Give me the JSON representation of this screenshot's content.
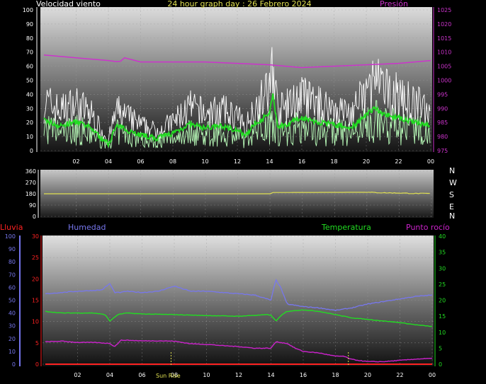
{
  "header": {
    "wind_label": "Velocidad viento",
    "title": "24 hour graph day : 26 Febrero 2024",
    "pressure_label": "Presión"
  },
  "compass": [
    "N",
    "W",
    "S",
    "E",
    "N"
  ],
  "bottom_header": {
    "rain_label": "Lluvia",
    "humidity_label": "Humedad",
    "temperature_label": "Temperatura",
    "dewpoint_label": "Punto rocío"
  },
  "annotations": {
    "sunrise": "Sun Rise"
  },
  "colors": {
    "wind": "#ffffff",
    "wind_avg": "#22dd22",
    "wind_gust_low": "#bbffbb",
    "pressure": "#cc33cc",
    "direction": "#e0e050",
    "humidity": "#7777ee",
    "temperature": "#22dd22",
    "dewpoint": "#cc22cc",
    "rain": "#ff2222"
  },
  "chart_data": [
    {
      "type": "line",
      "x_ticks": [
        "02",
        "04",
        "06",
        "08",
        "10",
        "12",
        "14",
        "16",
        "18",
        "20",
        "22",
        "00"
      ],
      "y_left": {
        "label": "Velocidad viento",
        "ylim": [
          0,
          100
        ],
        "ticks": [
          0,
          10,
          20,
          30,
          40,
          50,
          60,
          70,
          80,
          90,
          100
        ]
      },
      "y_right": {
        "label": "Presión",
        "ylim": [
          975,
          1025
        ],
        "ticks": [
          975,
          980,
          985,
          990,
          995,
          1000,
          1005,
          1010,
          1015,
          1020,
          1025
        ]
      },
      "series": [
        {
          "name": "Velocidad viento",
          "axis": "left",
          "x": [
            0,
            1,
            2,
            3,
            3.5,
            4,
            4.5,
            5,
            6,
            7,
            8,
            9,
            10,
            11,
            12,
            12.5,
            13,
            14,
            14.2,
            14.5,
            15,
            16,
            17,
            18,
            19,
            20,
            20.5,
            21,
            22,
            23,
            24
          ],
          "values": [
            35,
            28,
            33,
            25,
            15,
            8,
            28,
            25,
            18,
            14,
            20,
            30,
            26,
            28,
            24,
            16,
            30,
            42,
            65,
            28,
            30,
            38,
            32,
            30,
            26,
            40,
            50,
            42,
            38,
            32,
            30
          ]
        },
        {
          "name": "Presión",
          "axis": "right",
          "x": [
            0,
            2,
            4,
            4.7,
            5,
            6,
            8,
            10,
            12,
            14,
            16,
            18,
            20,
            22,
            24
          ],
          "values": [
            1009,
            1008,
            1007,
            1006.5,
            1008,
            1006.5,
            1006.5,
            1006.5,
            1006,
            1005.5,
            1004.5,
            1005,
            1005.5,
            1006,
            1007
          ]
        }
      ]
    },
    {
      "type": "line",
      "x_ticks": [
        "02",
        "04",
        "06",
        "08",
        "10",
        "12",
        "14",
        "16",
        "18",
        "20",
        "22",
        "00"
      ],
      "y": {
        "ylim": [
          0,
          360
        ],
        "ticks": [
          0,
          90,
          180,
          270,
          360
        ]
      },
      "series": [
        {
          "name": "Dirección",
          "x": [
            0,
            14,
            14.2,
            20,
            21,
            22,
            23,
            24
          ],
          "values": [
            180,
            180,
            190,
            192,
            188,
            186,
            182,
            182
          ]
        }
      ]
    },
    {
      "type": "line",
      "x_ticks": [
        "02",
        "04",
        "06",
        "08",
        "10",
        "12",
        "14",
        "16",
        "18",
        "20",
        "22",
        "00"
      ],
      "y_rain": {
        "label": "Lluvia",
        "ylim": [
          0,
          30
        ],
        "ticks": [
          0,
          5,
          10,
          15,
          20,
          25,
          30
        ]
      },
      "y_humidity": {
        "label": "Humedad",
        "ylim": [
          0,
          100
        ],
        "ticks": [
          0,
          10,
          20,
          30,
          40,
          50,
          60,
          70,
          80,
          90,
          100
        ]
      },
      "y_temp": {
        "label": "Temperatura / Punto rocío",
        "ylim": [
          0,
          40
        ],
        "ticks": [
          0,
          5,
          10,
          15,
          20,
          25,
          30,
          35,
          40
        ]
      },
      "series": [
        {
          "name": "Humedad",
          "axis": "humidity",
          "x": [
            0,
            2,
            3.5,
            4,
            4.3,
            4.7,
            5,
            6,
            7,
            8,
            8.5,
            9,
            10,
            11,
            12,
            13,
            14,
            14.3,
            14.6,
            15,
            15.5,
            16,
            17,
            18,
            19,
            20,
            21,
            22,
            23,
            24
          ],
          "values": [
            55,
            57,
            58,
            63,
            56,
            56,
            57,
            56,
            57,
            61,
            59,
            57,
            57,
            56,
            55,
            54,
            50,
            66,
            60,
            47,
            46,
            45,
            44,
            42,
            44,
            47,
            49,
            51,
            53,
            54
          ]
        },
        {
          "name": "Temperatura",
          "axis": "temp",
          "x": [
            0,
            1,
            2,
            3,
            3.7,
            4,
            4.5,
            5,
            6,
            8,
            10,
            12,
            13.8,
            14,
            14.3,
            14.7,
            15,
            16,
            17,
            18,
            19,
            20,
            21,
            22,
            23,
            24
          ],
          "values": [
            16.5,
            16,
            16,
            16,
            15.5,
            13.5,
            15.5,
            16,
            15.7,
            15.5,
            15.2,
            15,
            15.5,
            15.3,
            13.5,
            15.5,
            16.5,
            17,
            16.5,
            15.5,
            14.5,
            14,
            13.5,
            13,
            12.3,
            11.8
          ]
        },
        {
          "name": "Punto rocío",
          "axis": "temp",
          "x": [
            0,
            1,
            2,
            3,
            4,
            4.3,
            4.7,
            5,
            6,
            7,
            8,
            9,
            10,
            11,
            12,
            13,
            14,
            14.3,
            15,
            15.5,
            16,
            17,
            18,
            18.5,
            19,
            20,
            21,
            22,
            23,
            24
          ],
          "values": [
            7,
            7.2,
            6.8,
            6.8,
            6.5,
            5.5,
            7.5,
            7.5,
            7.3,
            7.3,
            7.2,
            6.4,
            6.2,
            5.8,
            5.5,
            5,
            5,
            7,
            6.5,
            5,
            4,
            3.5,
            2.5,
            2.5,
            1.5,
            0.8,
            0.8,
            1.2,
            1.6,
            1.8
          ]
        },
        {
          "name": "Lluvia",
          "axis": "rain",
          "x": [
            0,
            24
          ],
          "values": [
            0,
            0
          ]
        }
      ],
      "markers": [
        {
          "x": 7.8,
          "label": "Sun Rise"
        },
        {
          "x": 18.8
        }
      ]
    }
  ]
}
